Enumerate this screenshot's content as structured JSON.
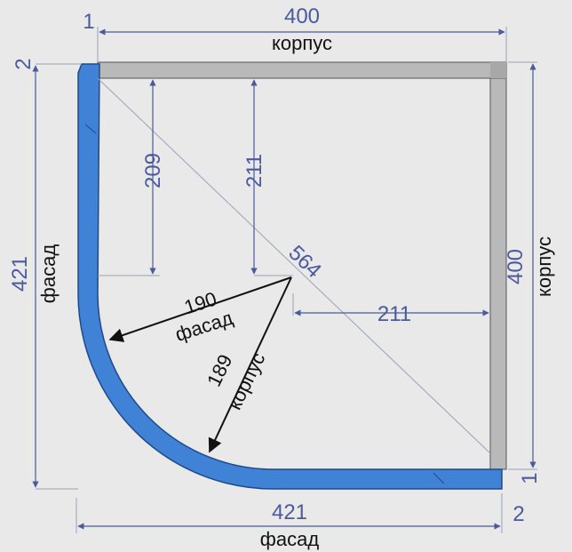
{
  "colors": {
    "background": "#e9e9e9",
    "facade_blue": "#3f82d6",
    "body_gray": "#b9b9b9",
    "dimension_blue": "#4b5a9c",
    "label_black": "#111111"
  },
  "top": {
    "value": "400",
    "label": "корпус"
  },
  "top_left_small": {
    "one": "1",
    "two": "2"
  },
  "right": {
    "value": "400",
    "label": "корпус"
  },
  "right_small": {
    "one": "1",
    "two": "2"
  },
  "left": {
    "value": "421",
    "label": "фасад"
  },
  "bottom": {
    "value": "421",
    "label": "фасад"
  },
  "inner": {
    "v209": "209",
    "v211_vertical": "211",
    "v211_horizontal": "211",
    "diagonal": "564",
    "radius_facade_value": "190",
    "radius_facade_label": "фасад",
    "radius_body_value": "189",
    "radius_body_label": "корпус"
  }
}
